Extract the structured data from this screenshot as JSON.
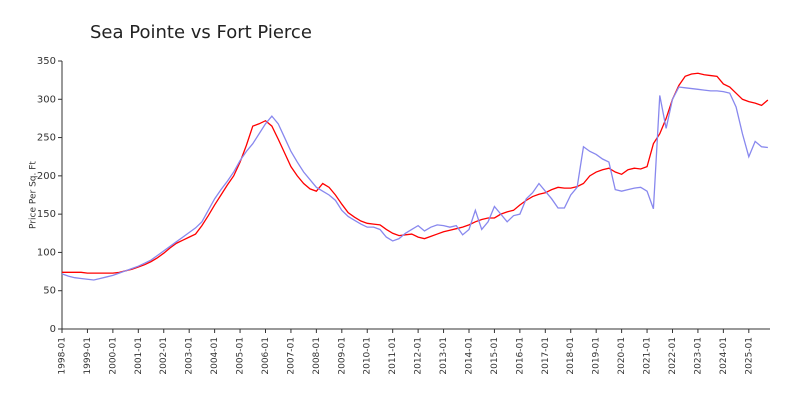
{
  "chart_data": {
    "type": "line",
    "title": "Sea Pointe vs Fort Pierce",
    "y_label": "Price Per Sq. Ft",
    "x": [
      "1998-01",
      "1998-04",
      "1998-07",
      "1998-10",
      "1999-01",
      "1999-04",
      "1999-07",
      "1999-10",
      "2000-01",
      "2000-04",
      "2000-07",
      "2000-10",
      "2001-01",
      "2001-04",
      "2001-07",
      "2001-10",
      "2002-01",
      "2002-04",
      "2002-07",
      "2002-10",
      "2003-01",
      "2003-04",
      "2003-07",
      "2003-10",
      "2004-01",
      "2004-04",
      "2004-07",
      "2004-10",
      "2005-01",
      "2005-04",
      "2005-07",
      "2005-10",
      "2006-01",
      "2006-04",
      "2006-07",
      "2006-10",
      "2007-01",
      "2007-04",
      "2007-07",
      "2007-10",
      "2008-01",
      "2008-04",
      "2008-07",
      "2008-10",
      "2009-01",
      "2009-04",
      "2009-07",
      "2009-10",
      "2010-01",
      "2010-04",
      "2010-07",
      "2010-10",
      "2011-01",
      "2011-04",
      "2011-07",
      "2011-10",
      "2012-01",
      "2012-04",
      "2012-07",
      "2012-10",
      "2013-01",
      "2013-04",
      "2013-07",
      "2013-10",
      "2014-01",
      "2014-04",
      "2014-07",
      "2014-10",
      "2015-01",
      "2015-04",
      "2015-07",
      "2015-10",
      "2016-01",
      "2016-04",
      "2016-07",
      "2016-10",
      "2017-01",
      "2017-04",
      "2017-07",
      "2017-10",
      "2018-01",
      "2018-04",
      "2018-07",
      "2018-10",
      "2019-01",
      "2019-04",
      "2019-07",
      "2019-10",
      "2020-01",
      "2020-04",
      "2020-07",
      "2020-10",
      "2021-01",
      "2021-04",
      "2021-07",
      "2021-10",
      "2022-01",
      "2022-04",
      "2022-07",
      "2022-10",
      "2023-01",
      "2023-04",
      "2023-07",
      "2023-10",
      "2024-01",
      "2024-04",
      "2024-07",
      "2024-10",
      "2025-01",
      "2025-04",
      "2025-07",
      "2025-10"
    ],
    "series": [
      {
        "color": "#ff0000",
        "values": [
          74,
          74,
          74,
          74,
          73,
          73,
          73,
          73,
          73,
          74,
          76,
          78,
          81,
          84,
          88,
          93,
          99,
          106,
          112,
          116,
          120,
          124,
          135,
          148,
          162,
          175,
          188,
          200,
          218,
          240,
          265,
          268,
          272,
          265,
          248,
          230,
          212,
          200,
          190,
          183,
          180,
          190,
          185,
          175,
          163,
          152,
          146,
          141,
          138,
          137,
          136,
          130,
          125,
          122,
          123,
          124,
          120,
          118,
          121,
          124,
          127,
          129,
          131,
          133,
          136,
          140,
          143,
          145,
          145,
          150,
          153,
          155,
          162,
          168,
          173,
          176,
          178,
          182,
          185,
          184,
          184,
          186,
          190,
          200,
          205,
          208,
          210,
          205,
          202,
          208,
          210,
          209,
          212,
          242,
          255,
          275,
          300,
          318,
          330,
          333,
          334,
          332,
          331,
          330,
          320,
          316,
          308,
          300,
          297,
          295,
          292,
          299
        ]
      },
      {
        "color": "#8888ee",
        "values": [
          72,
          69,
          67,
          66,
          65,
          64,
          66,
          68,
          70,
          73,
          76,
          79,
          82,
          86,
          90,
          96,
          102,
          108,
          114,
          120,
          126,
          132,
          140,
          155,
          170,
          182,
          193,
          205,
          220,
          232,
          242,
          255,
          268,
          278,
          268,
          250,
          232,
          218,
          205,
          195,
          185,
          180,
          175,
          168,
          155,
          147,
          142,
          137,
          133,
          133,
          130,
          120,
          115,
          118,
          125,
          130,
          135,
          128,
          133,
          136,
          135,
          133,
          135,
          123,
          130,
          155,
          130,
          140,
          160,
          150,
          140,
          148,
          150,
          170,
          178,
          190,
          180,
          170,
          158,
          158,
          175,
          185,
          238,
          232,
          228,
          222,
          218,
          182,
          180,
          182,
          184,
          185,
          180,
          157,
          305,
          262,
          300,
          316,
          315,
          314,
          313,
          312,
          311,
          311,
          310,
          308,
          290,
          255,
          225,
          245,
          238,
          237
        ]
      }
    ],
    "xlim": [
      "1998-01",
      "2025-11"
    ],
    "xticks": [
      "1998-01",
      "1999-01",
      "2000-01",
      "2001-01",
      "2002-01",
      "2003-01",
      "2004-01",
      "2005-01",
      "2006-01",
      "2007-01",
      "2008-01",
      "2009-01",
      "2010-01",
      "2011-01",
      "2012-01",
      "2013-01",
      "2014-01",
      "2015-01",
      "2016-01",
      "2017-01",
      "2018-01",
      "2019-01",
      "2020-01",
      "2021-01",
      "2022-01",
      "2023-01",
      "2024-01",
      "2025-01"
    ],
    "ylim": [
      0,
      350
    ],
    "yticks": [
      0,
      50,
      100,
      150,
      200,
      250,
      300,
      350
    ]
  }
}
